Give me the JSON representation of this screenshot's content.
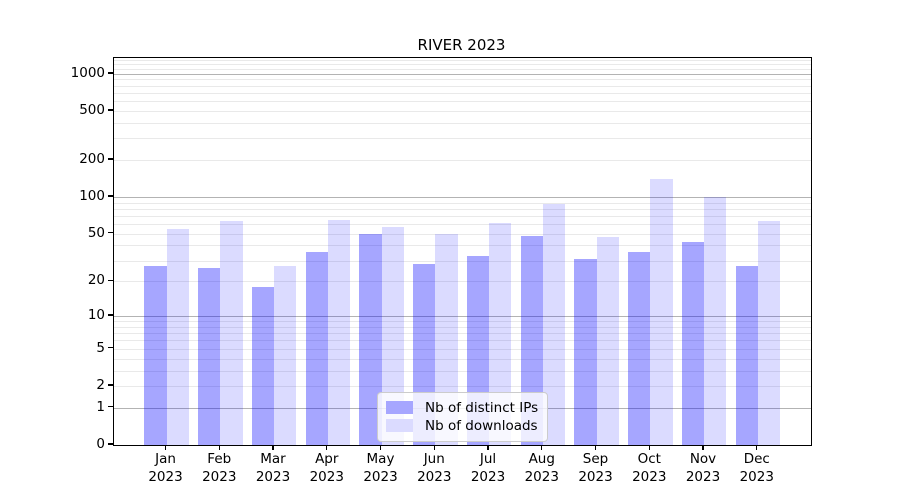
{
  "chart_data": {
    "type": "bar",
    "title": "RIVER 2023",
    "categories": [
      "Jan",
      "Feb",
      "Mar",
      "Apr",
      "May",
      "Jun",
      "Jul",
      "Aug",
      "Sep",
      "Oct",
      "Nov",
      "Dec"
    ],
    "category_year": "2023",
    "series": [
      {
        "name": "Nb of distinct IPs",
        "fill": "rgba(0,0,255,0.35)",
        "legend_hex": "#a6a6ff",
        "values": [
          27,
          26,
          18,
          35,
          50,
          28,
          33,
          48,
          31,
          35,
          43,
          27
        ]
      },
      {
        "name": "Nb of downloads",
        "fill": "rgba(0,0,255,0.14)",
        "legend_hex": "#dbdbff",
        "values": [
          55,
          64,
          27,
          65,
          57,
          50,
          61,
          87,
          47,
          140,
          100,
          64
        ]
      }
    ],
    "y_axis": {
      "scale": "log1p",
      "tick_values": [
        0,
        1,
        2,
        5,
        10,
        20,
        50,
        100,
        200,
        500,
        1000
      ],
      "tick_labels": [
        "0",
        "1",
        "2",
        "5",
        "10",
        "20",
        "50",
        "100",
        "200",
        "500",
        "1000"
      ],
      "display_max": 1343,
      "major_grid_values": [
        1,
        10,
        100,
        1000
      ],
      "minor_grid_extra": [
        1100,
        1200,
        1300
      ]
    },
    "grid": true,
    "legend_position": "bottom-center",
    "colors": {
      "major_grid": "#b3b3b3",
      "minor_grid": "#e9e9e9",
      "spine": "#000000",
      "text": "#000000"
    }
  }
}
